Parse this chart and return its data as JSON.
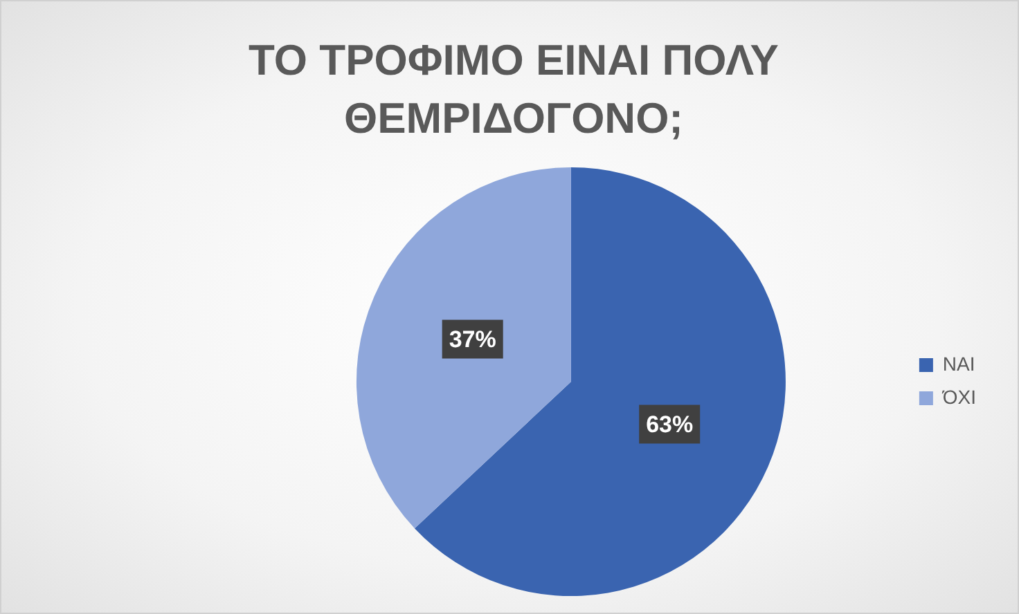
{
  "chart_data": {
    "type": "pie",
    "title": "ΤΟ ΤΡΟΦΙΜΟ ΕΙΝΑΙ ΠΟΛΥ ΘΕΜΡΙΔΟΓΟΝΟ;",
    "categories": [
      "ΝΑΙ",
      "ΌΧΙ"
    ],
    "values": [
      63,
      37
    ],
    "colors": [
      "#3a64b0",
      "#8fa7db"
    ],
    "value_labels": [
      "63%",
      "37%"
    ],
    "legend": "right"
  }
}
